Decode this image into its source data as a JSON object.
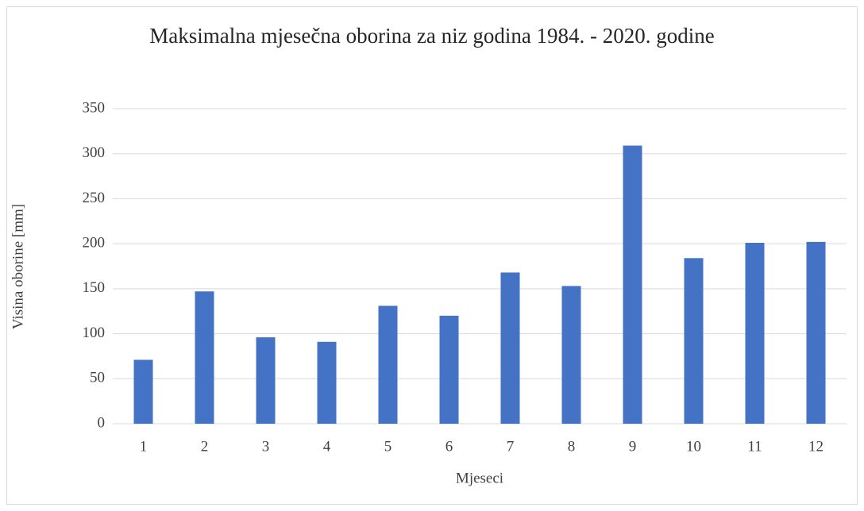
{
  "chart_data": {
    "type": "bar",
    "title": "Maksimalna mjesečna oborina za niz godina 1984. - 2020. godine",
    "x_label": "Mjeseci",
    "y_label": "Visina oborine [mm]",
    "categories": [
      "1",
      "2",
      "3",
      "4",
      "5",
      "6",
      "7",
      "8",
      "9",
      "10",
      "11",
      "12"
    ],
    "values": [
      71,
      147,
      96,
      91,
      131,
      120,
      168,
      153,
      309,
      184,
      201,
      202
    ],
    "color": "#4472c4",
    "ylim": [
      0,
      350
    ],
    "yticks": [
      0,
      50,
      100,
      150,
      200,
      250,
      300,
      350
    ],
    "grid": true
  }
}
